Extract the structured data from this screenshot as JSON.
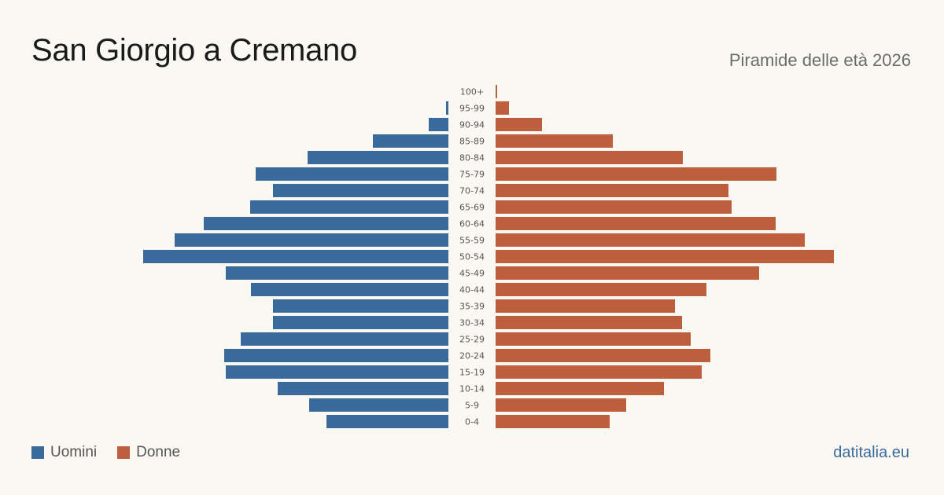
{
  "header": {
    "title": "San Giorgio a Cremano",
    "subtitle": "Piramide delle età 2026"
  },
  "footer": {
    "brand": "datitalia.eu"
  },
  "colors": {
    "men": "#3a6a9c",
    "women": "#bd5e3c"
  },
  "chart_data": {
    "type": "bar",
    "orientation": "horizontal-pyramid",
    "categories": [
      "100+",
      "95-99",
      "90-94",
      "85-89",
      "80-84",
      "75-79",
      "70-74",
      "65-69",
      "60-64",
      "55-59",
      "50-54",
      "45-49",
      "40-44",
      "35-39",
      "30-34",
      "25-29",
      "20-24",
      "15-19",
      "10-14",
      "5-9",
      "0-4"
    ],
    "series": [
      {
        "name": "Uomini",
        "values": [
          0,
          3,
          25,
          96,
          179,
          245,
          223,
          252,
          311,
          348,
          388,
          283,
          251,
          223,
          223,
          264,
          285,
          283,
          217,
          177,
          155
        ]
      },
      {
        "name": "Donne",
        "values": [
          2,
          17,
          59,
          149,
          238,
          357,
          296,
          300,
          356,
          393,
          430,
          335,
          268,
          228,
          237,
          248,
          273,
          262,
          214,
          166,
          145
        ]
      }
    ],
    "legend_position": "bottom-left",
    "grid": false
  }
}
